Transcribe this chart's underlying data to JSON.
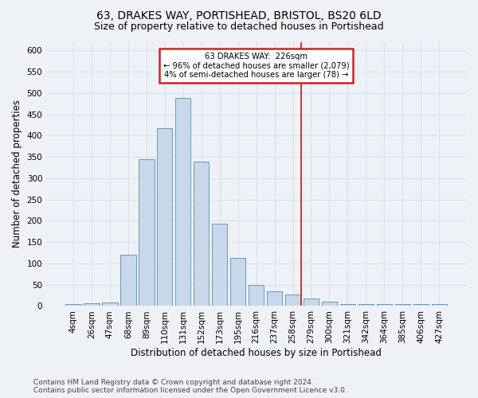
{
  "title": "63, DRAKES WAY, PORTISHEAD, BRISTOL, BS20 6LD",
  "subtitle": "Size of property relative to detached houses in Portishead",
  "xlabel": "Distribution of detached houses by size in Portishead",
  "ylabel": "Number of detached properties",
  "categories": [
    "4sqm",
    "26sqm",
    "47sqm",
    "68sqm",
    "89sqm",
    "110sqm",
    "131sqm",
    "152sqm",
    "173sqm",
    "195sqm",
    "216sqm",
    "237sqm",
    "258sqm",
    "279sqm",
    "300sqm",
    "321sqm",
    "342sqm",
    "364sqm",
    "385sqm",
    "406sqm",
    "427sqm"
  ],
  "values": [
    5,
    7,
    8,
    120,
    345,
    418,
    488,
    338,
    193,
    113,
    50,
    35,
    27,
    18,
    10,
    5,
    5,
    5,
    4,
    4,
    5
  ],
  "bar_color": "#c8d8ea",
  "bar_edge_color": "#6699bb",
  "vline_color": "#cc2222",
  "annotation_text": "63 DRAKES WAY:  226sqm\n← 96% of detached houses are smaller (2,079)\n4% of semi-detached houses are larger (78) →",
  "annotation_box_color": "#ffffff",
  "annotation_border_color": "#cc2222",
  "ylim": [
    0,
    620
  ],
  "yticks": [
    0,
    50,
    100,
    150,
    200,
    250,
    300,
    350,
    400,
    450,
    500,
    550,
    600
  ],
  "footer_text": "Contains HM Land Registry data © Crown copyright and database right 2024.\nContains public sector information licensed under the Open Government Licence v3.0.",
  "bg_color": "#eef2f7",
  "grid_color": "#d8e0ea",
  "title_fontsize": 10,
  "subtitle_fontsize": 9,
  "label_fontsize": 8.5,
  "tick_fontsize": 7.5,
  "footer_fontsize": 6.5,
  "vline_x": 12.47
}
